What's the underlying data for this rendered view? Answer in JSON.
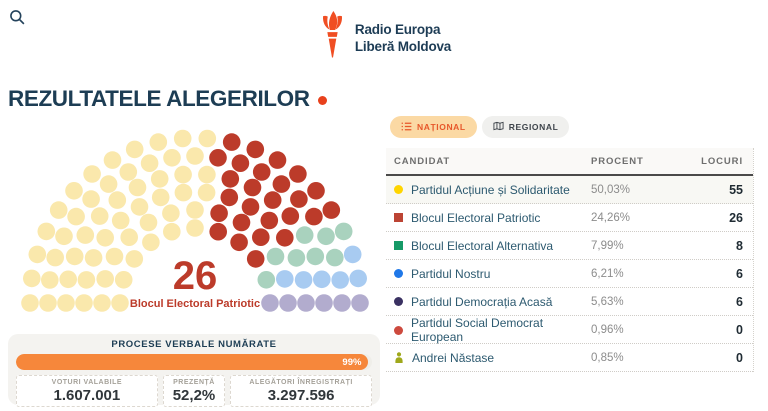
{
  "header": {
    "logo_line1": "Radio Europa",
    "logo_line2": "Liberă Moldova"
  },
  "page": {
    "title": "REZULTATELE ALEGERILOR"
  },
  "tabs": [
    {
      "label": "NAȚIONAL",
      "active": true
    },
    {
      "label": "REGIONAL",
      "active": false
    }
  ],
  "hemicycle": {
    "total_seats": 101,
    "highlight": {
      "seats": "26",
      "party": "Blocul Electoral Patriotic",
      "color": "#bc3b2a"
    },
    "parties": [
      {
        "name": "Partidul Acțiune și Solidaritate",
        "seats": 55,
        "color": "#fae8ac"
      },
      {
        "name": "Blocul Electoral Patriotic",
        "seats": 26,
        "color": "#bc3b2a"
      },
      {
        "name": "Blocul Electoral Alternativa",
        "seats": 8,
        "color": "#a9d2be"
      },
      {
        "name": "Partidul Nostru",
        "seats": 6,
        "color": "#a8cbf1"
      },
      {
        "name": "Partidul Democrația Acasă",
        "seats": 6,
        "color": "#b2acce"
      }
    ]
  },
  "results_table": {
    "columns": [
      "CANDIDAT",
      "PROCENT",
      "LOCURI"
    ],
    "rows": [
      {
        "name": "Partidul Acțiune și Solidaritate",
        "marker": "circle",
        "color": "#ffd500",
        "percent": "50,03%",
        "seats": "55"
      },
      {
        "name": "Blocul Electoral Patriotic",
        "marker": "square",
        "color": "#bc4434",
        "percent": "24,26%",
        "seats": "26"
      },
      {
        "name": "Blocul Electoral Alternativa",
        "marker": "square",
        "color": "#169a67",
        "percent": "7,99%",
        "seats": "8"
      },
      {
        "name": "Partidul Nostru",
        "marker": "circle",
        "color": "#1f78e8",
        "percent": "6,21%",
        "seats": "6"
      },
      {
        "name": "Partidul Democrația Acasă",
        "marker": "circle",
        "color": "#3a3162",
        "percent": "5,63%",
        "seats": "6"
      },
      {
        "name": "Partidul Social Democrat European",
        "marker": "circle",
        "color": "#cd4a3e",
        "percent": "0,96%",
        "seats": "0"
      },
      {
        "name": "Andrei Năstase",
        "marker": "person",
        "color": "#9fa81b",
        "percent": "0,85%",
        "seats": "0"
      }
    ]
  },
  "stats": {
    "title": "PROCESE VERBALE NUMĂRATE",
    "progress_percent": 99,
    "progress_label": "99%",
    "boxes": [
      {
        "label": "VOTURI VALABILE",
        "value": "1.607.001"
      },
      {
        "label": "PREZENȚĂ",
        "value": "52,2%"
      },
      {
        "label": "ALEGĂTORI ÎNREGISTRAȚI",
        "value": "3.297.596"
      }
    ]
  },
  "colors": {
    "accent_orange": "#f04e23",
    "navy": "#1d3d54",
    "highlight_red": "#bc3b2a",
    "progress_orange": "#f6873b"
  }
}
